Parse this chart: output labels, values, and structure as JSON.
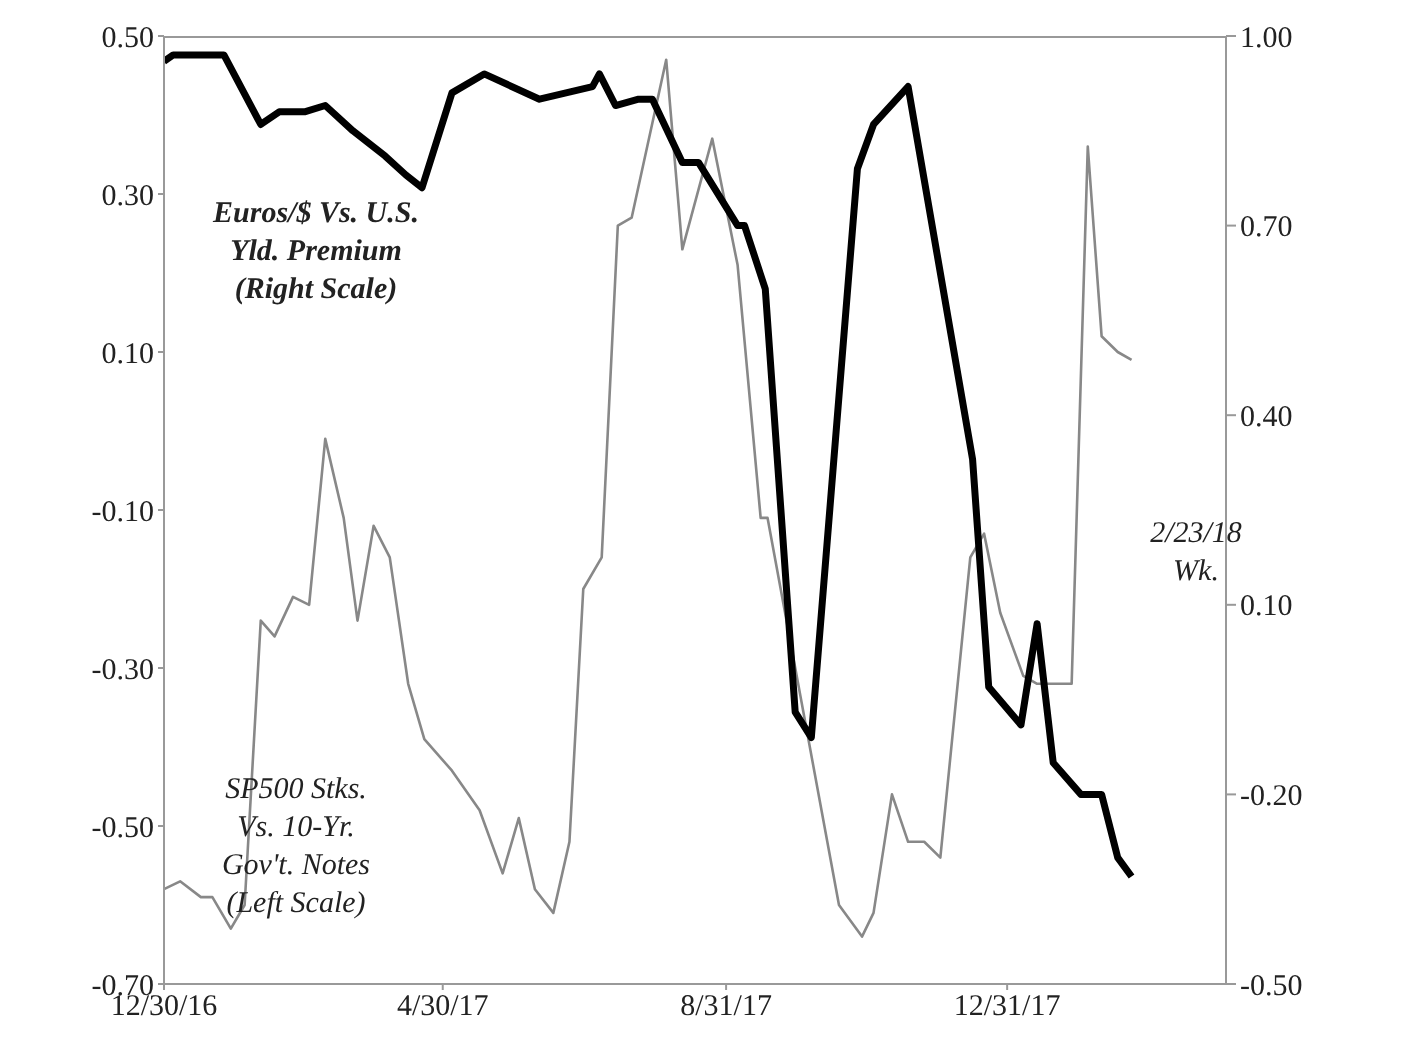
{
  "chart_data": {
    "type": "line",
    "xlim": [
      "2016-12-30",
      "2018-04-05"
    ],
    "xticks": [
      {
        "value": "2016-12-30",
        "label": "12/30/16"
      },
      {
        "value": "2017-04-30",
        "label": "4/30/17"
      },
      {
        "value": "2017-08-31",
        "label": "8/31/17"
      },
      {
        "value": "2017-12-31",
        "label": "12/31/17"
      }
    ],
    "ylim": [
      -0.7,
      0.5
    ],
    "yticks": [
      {
        "value": -0.7,
        "label": "-0.70"
      },
      {
        "value": -0.5,
        "label": "-0.50"
      },
      {
        "value": -0.3,
        "label": "-0.30"
      },
      {
        "value": -0.1,
        "label": "-0.10"
      },
      {
        "value": 0.1,
        "label": "0.10"
      },
      {
        "value": 0.3,
        "label": "0.30"
      },
      {
        "value": 0.5,
        "label": "0.50"
      }
    ],
    "y2lim": [
      -0.5,
      1.0
    ],
    "y2ticks": [
      {
        "value": -0.5,
        "label": "-0.50"
      },
      {
        "value": -0.2,
        "label": "-0.20"
      },
      {
        "value": 0.1,
        "label": "0.10"
      },
      {
        "value": 0.4,
        "label": "0.40"
      },
      {
        "value": 0.7,
        "label": "0.70"
      },
      {
        "value": 1.0,
        "label": "1.00"
      }
    ],
    "marker": "none",
    "line_style": "solid",
    "series": [
      {
        "color": "#888888",
        "x": [
          "2016-12-30",
          "2017-01-06",
          "2017-01-15",
          "2017-01-20",
          "2017-01-28",
          "2017-02-03",
          "2017-02-10",
          "2017-02-16",
          "2017-02-24",
          "2017-03-03",
          "2017-03-10",
          "2017-03-18",
          "2017-03-24",
          "2017-03-31",
          "2017-04-07",
          "2017-04-15",
          "2017-04-22",
          "2017-05-04",
          "2017-05-16",
          "2017-05-26",
          "2017-06-02",
          "2017-06-09",
          "2017-06-17",
          "2017-06-24",
          "2017-06-30",
          "2017-07-08",
          "2017-07-15",
          "2017-07-21",
          "2017-08-05",
          "2017-08-12",
          "2017-08-25",
          "2017-09-05",
          "2017-09-15",
          "2017-09-18",
          "2017-10-19",
          "2017-10-29",
          "2017-11-03",
          "2017-11-11",
          "2017-11-18",
          "2017-11-25",
          "2017-12-02",
          "2017-12-15",
          "2017-12-21",
          "2017-12-28",
          "2018-01-07",
          "2018-01-13",
          "2018-01-28",
          "2018-02-04",
          "2018-02-10",
          "2018-02-17",
          "2018-02-23"
        ],
        "values": [
          -0.58,
          -0.57,
          -0.59,
          -0.59,
          -0.63,
          -0.6,
          -0.24,
          -0.26,
          -0.21,
          -0.22,
          -0.01,
          -0.11,
          -0.24,
          -0.12,
          -0.16,
          -0.32,
          -0.39,
          -0.43,
          -0.48,
          -0.56,
          -0.49,
          -0.58,
          -0.61,
          -0.52,
          -0.2,
          -0.16,
          0.26,
          0.27,
          0.47,
          0.23,
          0.37,
          0.21,
          -0.11,
          -0.11,
          -0.6,
          -0.64,
          -0.61,
          -0.46,
          -0.52,
          -0.52,
          -0.54,
          -0.16,
          -0.13,
          -0.23,
          -0.31,
          -0.32,
          -0.32,
          0.36,
          0.12,
          0.1,
          0.09
        ]
      },
      {
        "color": "#000000",
        "axis": "y2",
        "x": [
          "2016-12-30",
          "2017-01-03",
          "2017-01-25",
          "2017-02-10",
          "2017-02-18",
          "2017-03-01",
          "2017-03-10",
          "2017-03-22",
          "2017-04-05",
          "2017-04-14",
          "2017-04-21",
          "2017-05-04",
          "2017-05-18",
          "2017-06-11",
          "2017-07-04",
          "2017-07-07",
          "2017-07-14",
          "2017-07-24",
          "2017-07-30",
          "2017-08-12",
          "2017-08-19",
          "2017-09-05",
          "2017-09-08",
          "2017-09-17",
          "2017-09-30",
          "2017-10-07",
          "2017-10-27",
          "2017-11-03",
          "2017-11-18",
          "2017-12-16",
          "2017-12-23",
          "2018-01-06",
          "2018-01-13",
          "2018-01-20",
          "2018-02-01",
          "2018-02-10",
          "2018-02-17",
          "2018-02-23"
        ],
        "values": [
          0.96,
          0.97,
          0.97,
          0.86,
          0.88,
          0.88,
          0.89,
          0.85,
          0.81,
          0.78,
          0.76,
          0.91,
          0.94,
          0.9,
          0.92,
          0.94,
          0.89,
          0.9,
          0.9,
          0.8,
          0.8,
          0.7,
          0.7,
          0.6,
          -0.07,
          -0.11,
          0.79,
          0.86,
          0.92,
          0.33,
          -0.03,
          -0.09,
          0.07,
          -0.15,
          -0.2,
          -0.2,
          -0.3,
          -0.33
        ]
      }
    ],
    "annotations": [
      "Euros/$ Vs. U.S.\nYld. Premium\n(Right Scale)",
      "SP500 Stks.\nVs. 10-Yr.\nGov't. Notes\n(Left Scale)",
      "2/23/18\nWk."
    ]
  }
}
